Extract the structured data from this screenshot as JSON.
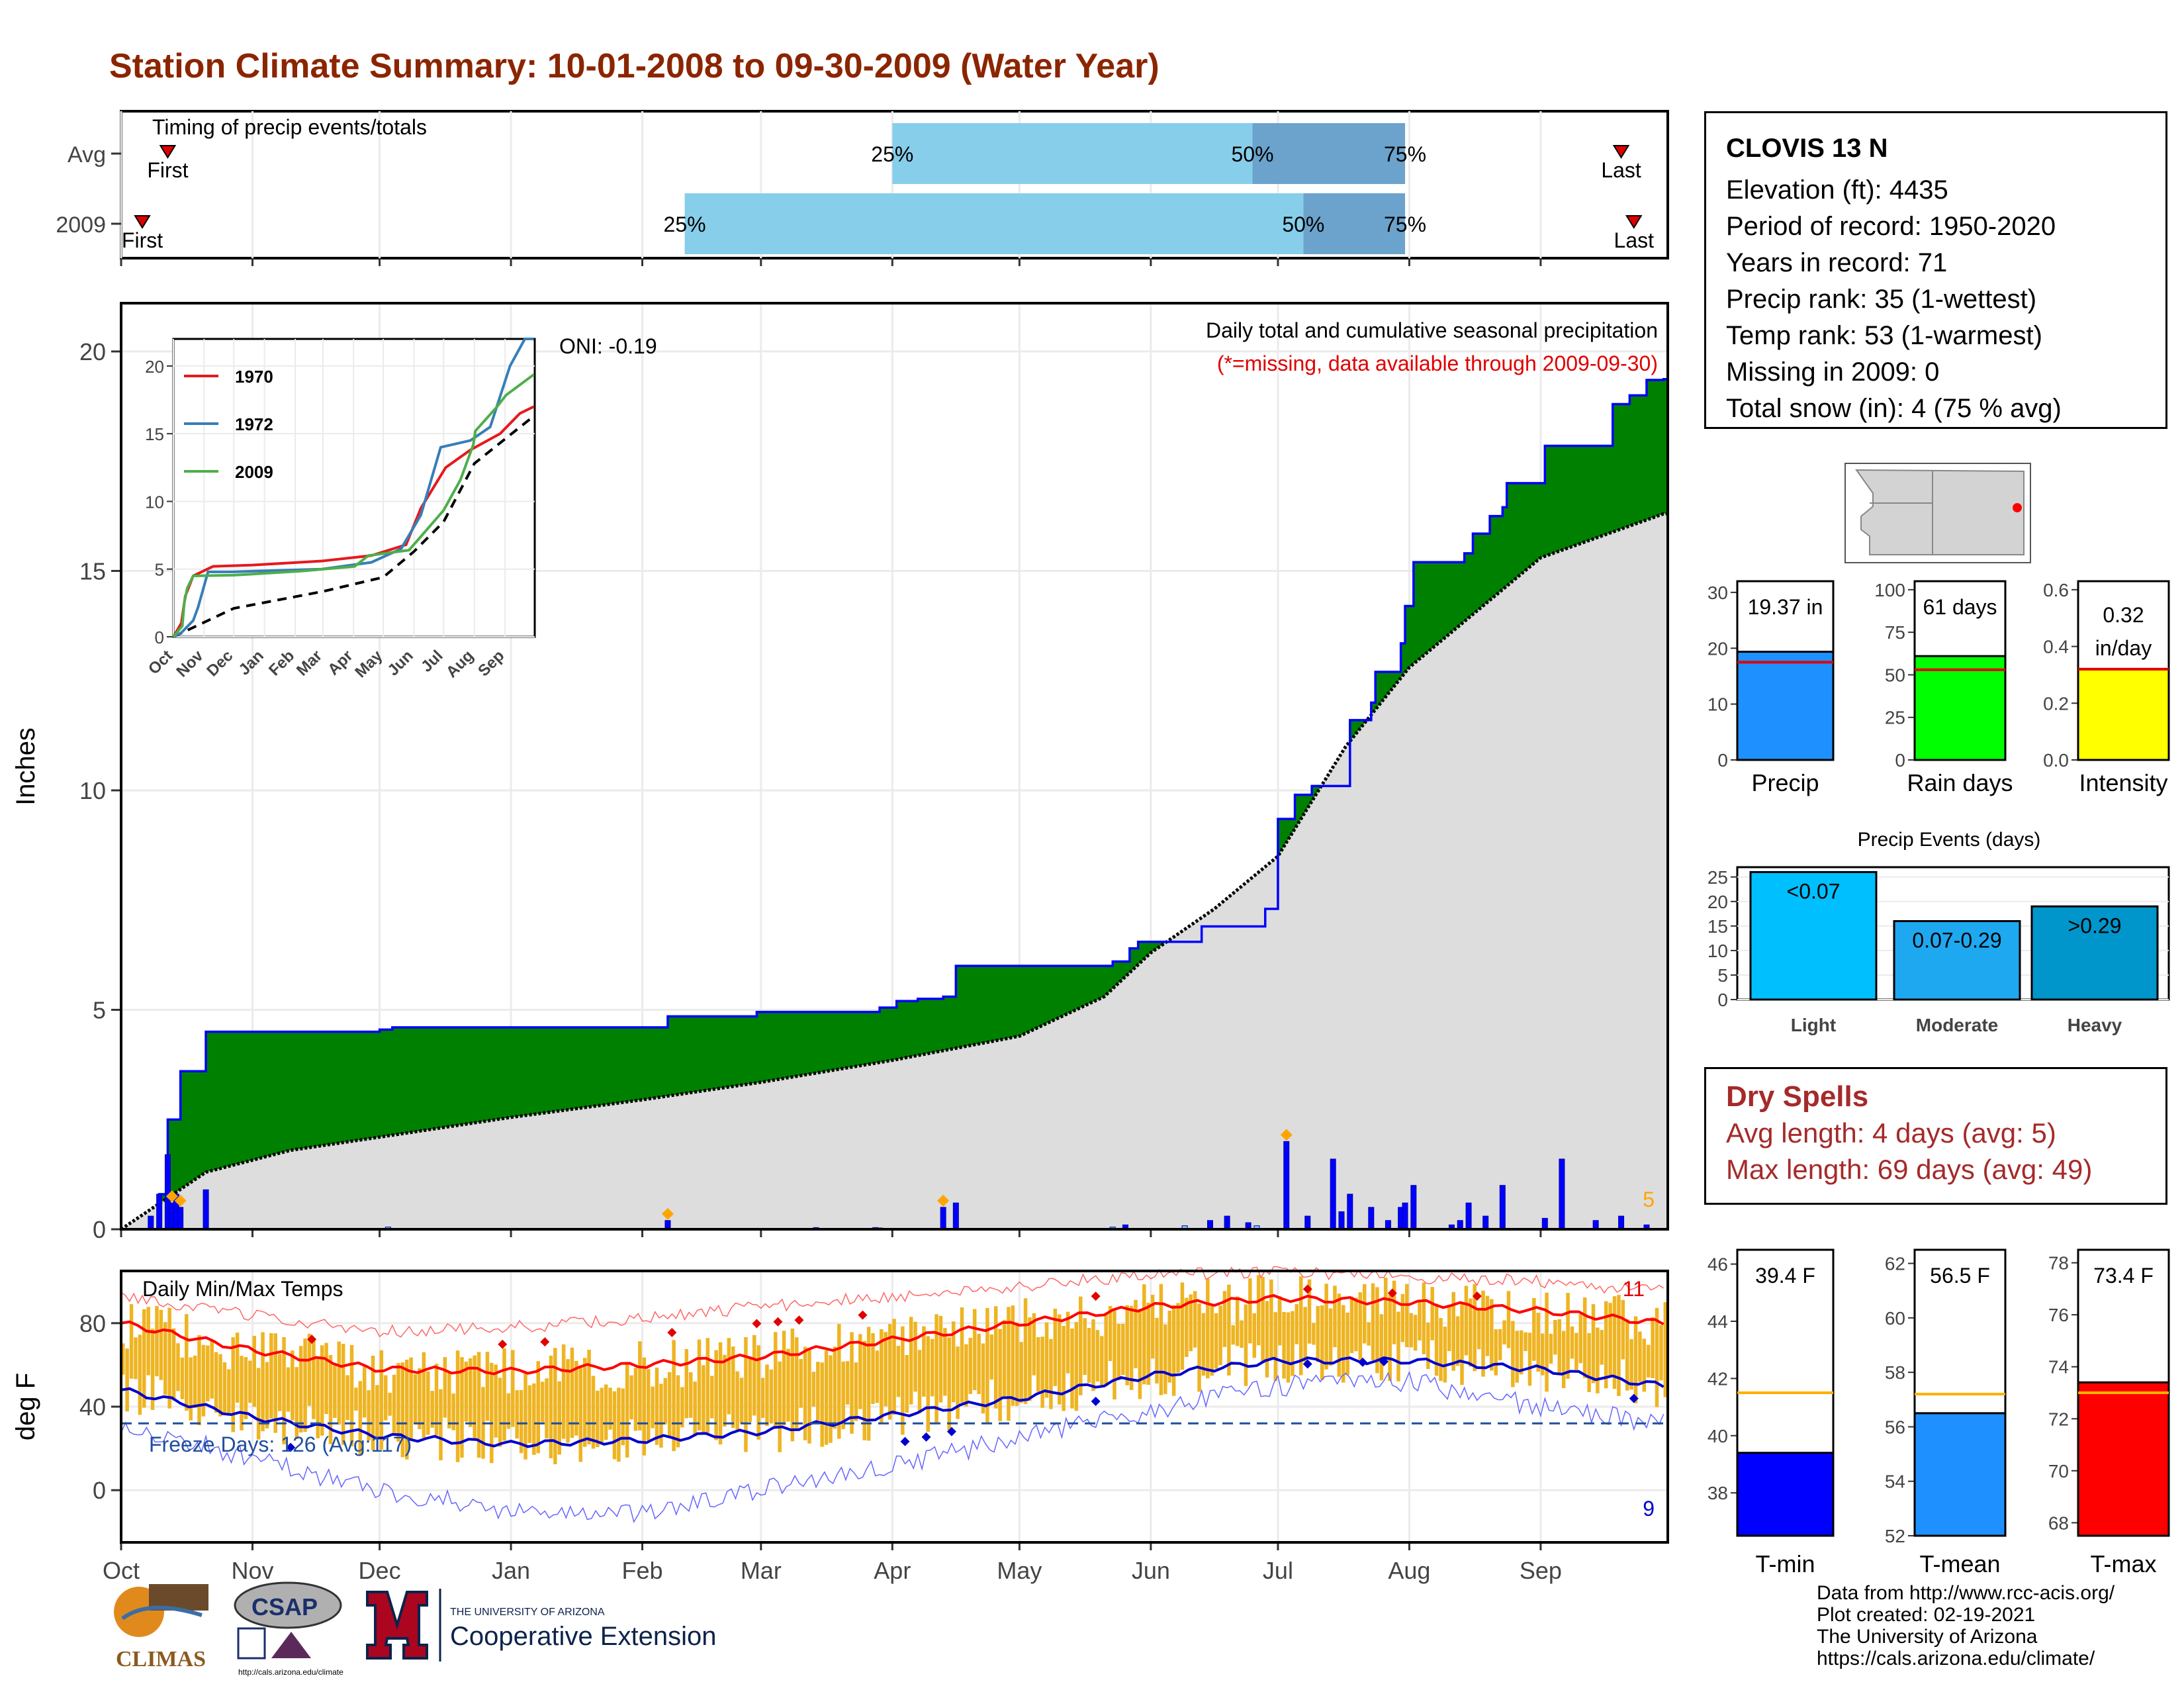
{
  "title": "Station Climate Summary: 10-01-2008 to 09-30-2009 (Water Year)",
  "station": {
    "name": "CLOVIS 13 N",
    "lines": [
      "Elevation (ft): 4435",
      "Period of record: 1950-2020",
      "Years in record: 71",
      "Precip rank: 35 (1-wettest)",
      "Temp rank: 53 (1-warmest)",
      "Missing in 2009: 0",
      "Total snow (in): 4 (75 % avg)"
    ]
  },
  "dry_spells": {
    "title": "Dry Spells",
    "avg": "Avg length: 4 days (avg: 5)",
    "max": "Max length: 69 days (avg: 49)"
  },
  "credits": [
    "Data from http://www.rcc-acis.org/",
    "Plot created: 02-19-2021",
    "The University of Arizona",
    "https://cals.arizona.edu/climate/"
  ],
  "logos": {
    "climas": "CLIMAS",
    "csap": "CSAP",
    "csap_url": "http://cals.arizona.edu/climate",
    "ua_small": "THE UNIVERSITY OF ARIZONA",
    "ua_big": "Cooperative Extension"
  },
  "colors": {
    "title": "#8B2500",
    "surplus": "#008000",
    "deficit": "#7B4A12",
    "climatology": "#DDDDDD",
    "precip_bar": "#0000FF",
    "temp_bar": "#EEB422",
    "tmax_line": "#FF0000",
    "tmin_line": "#0000CC",
    "dry": "#A52A2A"
  },
  "chart_data": [
    {
      "id": "timing",
      "type": "bar",
      "title": "Timing of precip events/totals",
      "rows": [
        {
          "label": "Avg",
          "first": "Oct 12",
          "p25": "Apr 1",
          "p50": "Jun 25",
          "p75": "Jul 31",
          "last": "Sep 20"
        },
        {
          "label": "2009",
          "first": "Oct 6",
          "p25": "Feb 11",
          "p50": "Jul 7",
          "p75": "Jul 31",
          "last": "Sep 23"
        }
      ],
      "markers": {
        "first": "First",
        "last": "Last",
        "p25": "25%",
        "p50": "50%",
        "p75": "75%"
      }
    },
    {
      "id": "cumulative_precip",
      "type": "area",
      "title": "Daily total and cumulative seasonal precipitation",
      "subtitle": "(*=missing, data available through 2009-09-30)",
      "oni": "ONI: -0.19",
      "ylabel": "Inches",
      "ylim": [
        0,
        21
      ],
      "yticks": [
        0,
        5,
        10,
        15,
        20
      ],
      "months": [
        "Oct",
        "Nov",
        "Dec",
        "Jan",
        "Feb",
        "Mar",
        "Apr",
        "May",
        "Jun",
        "Jul",
        "Aug",
        "Sep"
      ],
      "month_days": [
        0,
        31,
        61,
        92,
        123,
        151,
        182,
        212,
        243,
        273,
        304,
        335
      ],
      "climatology_cum": [
        [
          0,
          0
        ],
        [
          20,
          1.3
        ],
        [
          40,
          1.8
        ],
        [
          61,
          2.1
        ],
        [
          92,
          2.55
        ],
        [
          123,
          2.95
        ],
        [
          151,
          3.35
        ],
        [
          182,
          3.85
        ],
        [
          212,
          4.4
        ],
        [
          232,
          5.3
        ],
        [
          243,
          6.3
        ],
        [
          258,
          7.3
        ],
        [
          273,
          8.5
        ],
        [
          289,
          11.0
        ],
        [
          304,
          12.8
        ],
        [
          335,
          15.3
        ],
        [
          364,
          16.3
        ]
      ],
      "observed_cum": [
        [
          0,
          0
        ],
        [
          9,
          0.8
        ],
        [
          11,
          2.5
        ],
        [
          14,
          3.6
        ],
        [
          20,
          4.5
        ],
        [
          61,
          4.55
        ],
        [
          64,
          4.6
        ],
        [
          129,
          4.85
        ],
        [
          150,
          4.95
        ],
        [
          179,
          5.05
        ],
        [
          183,
          5.2
        ],
        [
          188,
          5.25
        ],
        [
          194,
          5.3
        ],
        [
          197,
          6.0
        ],
        [
          234,
          6.1
        ],
        [
          238,
          6.4
        ],
        [
          240,
          6.55
        ],
        [
          255,
          6.9
        ],
        [
          270,
          7.3
        ],
        [
          273,
          9.35
        ],
        [
          277,
          9.9
        ],
        [
          281,
          10.1
        ],
        [
          290,
          11.6
        ],
        [
          295,
          12.0
        ],
        [
          296,
          12.7
        ],
        [
          302,
          13.35
        ],
        [
          303,
          14.2
        ],
        [
          305,
          15.2
        ],
        [
          317,
          15.4
        ],
        [
          319,
          15.85
        ],
        [
          323,
          16.25
        ],
        [
          326,
          16.45
        ],
        [
          327,
          17.0
        ],
        [
          336,
          17.85
        ],
        [
          352,
          18.8
        ],
        [
          356,
          19.0
        ],
        [
          360,
          19.35
        ],
        [
          364,
          19.37
        ]
      ],
      "daily_precip": [
        [
          7,
          0.3
        ],
        [
          9,
          0.8
        ],
        [
          11,
          1.7
        ],
        [
          12,
          0.6
        ],
        [
          13,
          0.8
        ],
        [
          14,
          0.5
        ],
        [
          20,
          0.9
        ],
        [
          63,
          0.05
        ],
        [
          129,
          0.2
        ],
        [
          164,
          0.04
        ],
        [
          178,
          0.04
        ],
        [
          179,
          0.03
        ],
        [
          194,
          0.5
        ],
        [
          197,
          0.6
        ],
        [
          234,
          0.05
        ],
        [
          237,
          0.1
        ],
        [
          251,
          0.08
        ],
        [
          257,
          0.2
        ],
        [
          261,
          0.3
        ],
        [
          266,
          0.15
        ],
        [
          268,
          0.08
        ],
        [
          275,
          2.0
        ],
        [
          280,
          0.3
        ],
        [
          286,
          1.6
        ],
        [
          288,
          0.4
        ],
        [
          290,
          0.8
        ],
        [
          295,
          0.5
        ],
        [
          299,
          0.2
        ],
        [
          302,
          0.5
        ],
        [
          303,
          0.6
        ],
        [
          305,
          1.0
        ],
        [
          314,
          0.1
        ],
        [
          316,
          0.2
        ],
        [
          318,
          0.6
        ],
        [
          322,
          0.3
        ],
        [
          326,
          1.0
        ],
        [
          336,
          0.25
        ],
        [
          340,
          1.6
        ],
        [
          348,
          0.2
        ],
        [
          354,
          0.3
        ],
        [
          360,
          0.1
        ]
      ],
      "snow_markers": [
        12,
        14,
        129,
        194,
        275
      ],
      "snow_count": "5"
    },
    {
      "id": "inset",
      "type": "line",
      "months": [
        "Oct",
        "Nov",
        "Dec",
        "Jan",
        "Feb",
        "Mar",
        "Apr",
        "May",
        "Jun",
        "Jul",
        "Aug",
        "Sep"
      ],
      "ylim": [
        0,
        22
      ],
      "yticks": [
        0,
        5,
        10,
        15,
        20
      ],
      "series": [
        {
          "name": "1970",
          "color": "#E41A1C",
          "points": [
            [
              0,
              0
            ],
            [
              8,
              1
            ],
            [
              12,
              3
            ],
            [
              20,
              4.5
            ],
            [
              40,
              5.2
            ],
            [
              80,
              5.3
            ],
            [
              150,
              5.6
            ],
            [
              200,
              6.0
            ],
            [
              235,
              6.8
            ],
            [
              250,
              9.5
            ],
            [
              275,
              12.5
            ],
            [
              300,
              13.8
            ],
            [
              330,
              15.0
            ],
            [
              350,
              16.5
            ],
            [
              364,
              17.0
            ]
          ]
        },
        {
          "name": "1972",
          "color": "#377EB8",
          "points": [
            [
              0,
              0
            ],
            [
              8,
              0.3
            ],
            [
              20,
              1.2
            ],
            [
              25,
              2.2
            ],
            [
              35,
              4.8
            ],
            [
              60,
              4.8
            ],
            [
              150,
              5.0
            ],
            [
              200,
              5.5
            ],
            [
              230,
              6.5
            ],
            [
              250,
              9.0
            ],
            [
              270,
              14.0
            ],
            [
              300,
              14.5
            ],
            [
              320,
              15.5
            ],
            [
              340,
              20.0
            ],
            [
              355,
              22.5
            ],
            [
              364,
              22.5
            ]
          ]
        },
        {
          "name": "2009",
          "color": "#4DAF4A",
          "points": [
            [
              0,
              0
            ],
            [
              9,
              0.8
            ],
            [
              11,
              2.5
            ],
            [
              14,
              3.6
            ],
            [
              20,
              4.5
            ],
            [
              61,
              4.55
            ],
            [
              129,
              4.85
            ],
            [
              183,
              5.2
            ],
            [
              197,
              6.0
            ],
            [
              238,
              6.4
            ],
            [
              273,
              9.35
            ],
            [
              290,
              11.6
            ],
            [
              303,
              14.2
            ],
            [
              305,
              15.2
            ],
            [
              327,
              17.0
            ],
            [
              336,
              17.85
            ],
            [
              364,
              19.37
            ]
          ]
        }
      ],
      "mean_line": [
        [
          0,
          0
        ],
        [
          61,
          2.1
        ],
        [
          151,
          3.35
        ],
        [
          212,
          4.4
        ],
        [
          243,
          6.3
        ],
        [
          273,
          8.5
        ],
        [
          304,
          12.8
        ],
        [
          364,
          16.3
        ]
      ]
    },
    {
      "id": "temps",
      "type": "area",
      "title": "Daily Min/Max Temps",
      "ylabel": "deg F",
      "ylim": [
        -25,
        105
      ],
      "yticks": [
        0,
        40,
        80
      ],
      "freeze_label": "Freeze Days: 126 (Avg:117)",
      "freeze_line": 32,
      "record_high_count": "11",
      "record_low_count": "9",
      "months": [
        "Oct",
        "Nov",
        "Dec",
        "Jan",
        "Feb",
        "Mar",
        "Apr",
        "May",
        "Jun",
        "Jul",
        "Aug",
        "Sep"
      ],
      "avg_tmax": [
        [
          0,
          80
        ],
        [
          31,
          67
        ],
        [
          61,
          58
        ],
        [
          92,
          57
        ],
        [
          123,
          60
        ],
        [
          151,
          64
        ],
        [
          182,
          72
        ],
        [
          212,
          80
        ],
        [
          243,
          88
        ],
        [
          273,
          92
        ],
        [
          304,
          90
        ],
        [
          335,
          86
        ],
        [
          364,
          80
        ]
      ],
      "avg_tmin": [
        [
          0,
          48
        ],
        [
          31,
          35
        ],
        [
          61,
          26
        ],
        [
          92,
          22
        ],
        [
          123,
          24
        ],
        [
          151,
          28
        ],
        [
          182,
          36
        ],
        [
          212,
          44
        ],
        [
          243,
          55
        ],
        [
          273,
          62
        ],
        [
          304,
          62
        ],
        [
          335,
          58
        ],
        [
          364,
          50
        ]
      ],
      "rec_high": [
        [
          0,
          92
        ],
        [
          31,
          84
        ],
        [
          61,
          76
        ],
        [
          92,
          78
        ],
        [
          123,
          82
        ],
        [
          151,
          88
        ],
        [
          182,
          93
        ],
        [
          212,
          98
        ],
        [
          243,
          103
        ],
        [
          273,
          105
        ],
        [
          304,
          102
        ],
        [
          335,
          100
        ],
        [
          364,
          95
        ]
      ],
      "rec_low": [
        [
          0,
          32
        ],
        [
          31,
          15
        ],
        [
          61,
          0
        ],
        [
          92,
          -10
        ],
        [
          123,
          -12
        ],
        [
          151,
          0
        ],
        [
          182,
          12
        ],
        [
          212,
          25
        ],
        [
          243,
          38
        ],
        [
          273,
          50
        ],
        [
          304,
          52
        ],
        [
          335,
          40
        ],
        [
          364,
          32
        ]
      ]
    },
    {
      "id": "precip_totals",
      "type": "bar",
      "panels": [
        {
          "name": "Precip",
          "value": 19.37,
          "avg": 17.5,
          "label": "19.37 in",
          "ylim": [
            0,
            32
          ],
          "yticks": [
            0,
            10,
            20,
            30
          ],
          "color": "#1E90FF"
        },
        {
          "name": "Rain days",
          "value": 61,
          "avg": 53,
          "label": "61 days",
          "ylim": [
            0,
            105
          ],
          "yticks": [
            0,
            25,
            50,
            75,
            100
          ],
          "color": "#00FF00"
        },
        {
          "name": "Intensity",
          "value": 0.32,
          "avg": 0.32,
          "label": "0.32 in/day",
          "ylim": [
            0,
            0.63
          ],
          "yticks": [
            0.0,
            0.2,
            0.4,
            0.6
          ],
          "color": "#FFFF00"
        }
      ]
    },
    {
      "id": "precip_events",
      "type": "bar",
      "title": "Precip Events (days)",
      "categories": [
        "Light",
        "Moderate",
        "Heavy"
      ],
      "bar_labels": [
        "<0.07",
        "0.07-0.29",
        ">0.29"
      ],
      "values": [
        26,
        16,
        19
      ],
      "ylim": [
        0,
        27
      ],
      "yticks": [
        0,
        5,
        10,
        15,
        20,
        25
      ],
      "colors": [
        "#00BFFF",
        "#1EA8F0",
        "#0096CC"
      ]
    },
    {
      "id": "temp_totals",
      "type": "bar",
      "panels": [
        {
          "name": "T-min",
          "value": 39.4,
          "avg": 41.5,
          "label": "39.4 F",
          "ylim": [
            36.5,
            46.5
          ],
          "yticks": [
            38,
            40,
            42,
            44,
            46
          ],
          "color": "#0000FF"
        },
        {
          "name": "T-mean",
          "value": 56.5,
          "avg": 57.2,
          "label": "56.5 F",
          "ylim": [
            52,
            62.5
          ],
          "yticks": [
            52,
            54,
            56,
            58,
            60,
            62
          ],
          "color": "#1E90FF"
        },
        {
          "name": "T-max",
          "value": 73.4,
          "avg": 73.0,
          "label": "73.4 F",
          "ylim": [
            67.5,
            78.5
          ],
          "yticks": [
            68,
            70,
            72,
            74,
            76,
            78
          ],
          "color": "#FF0000"
        }
      ]
    }
  ]
}
